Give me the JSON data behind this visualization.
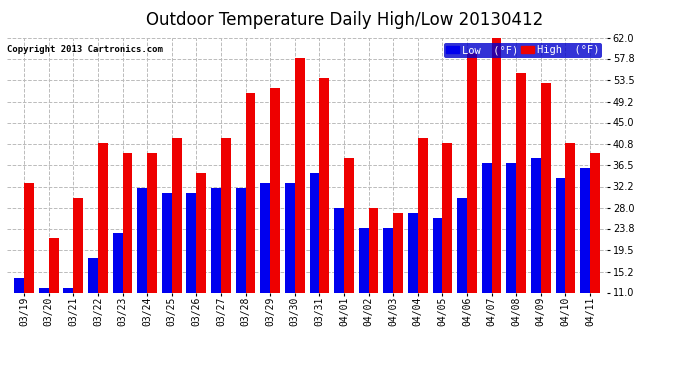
{
  "title": "Outdoor Temperature Daily High/Low 20130412",
  "copyright": "Copyright 2013 Cartronics.com",
  "legend_low": "Low  (°F)",
  "legend_high": "High  (°F)",
  "dates": [
    "03/19",
    "03/20",
    "03/21",
    "03/22",
    "03/23",
    "03/24",
    "03/25",
    "03/26",
    "03/27",
    "03/28",
    "03/29",
    "03/30",
    "03/31",
    "04/01",
    "04/02",
    "04/03",
    "04/04",
    "04/05",
    "04/06",
    "04/07",
    "04/08",
    "04/09",
    "04/10",
    "04/11"
  ],
  "low": [
    14,
    12,
    12,
    18,
    23,
    32,
    31,
    31,
    32,
    32,
    33,
    33,
    35,
    28,
    24,
    24,
    27,
    26,
    30,
    37,
    37,
    38,
    34,
    36
  ],
  "high": [
    33,
    22,
    30,
    41,
    39,
    39,
    42,
    35,
    42,
    51,
    52,
    58,
    54,
    38,
    28,
    27,
    42,
    41,
    59,
    62,
    55,
    53,
    41,
    39
  ],
  "ymin": 11.0,
  "ymax": 62.0,
  "yticks": [
    11.0,
    15.2,
    19.5,
    23.8,
    28.0,
    32.2,
    36.5,
    40.8,
    45.0,
    49.2,
    53.5,
    57.8,
    62.0
  ],
  "bar_color_low": "#0000ee",
  "bar_color_high": "#ee0000",
  "background_color": "#ffffff",
  "grid_color": "#bbbbbb",
  "title_fontsize": 12,
  "tick_fontsize": 7,
  "bar_width": 0.4,
  "figwidth": 6.9,
  "figheight": 3.75,
  "dpi": 100
}
